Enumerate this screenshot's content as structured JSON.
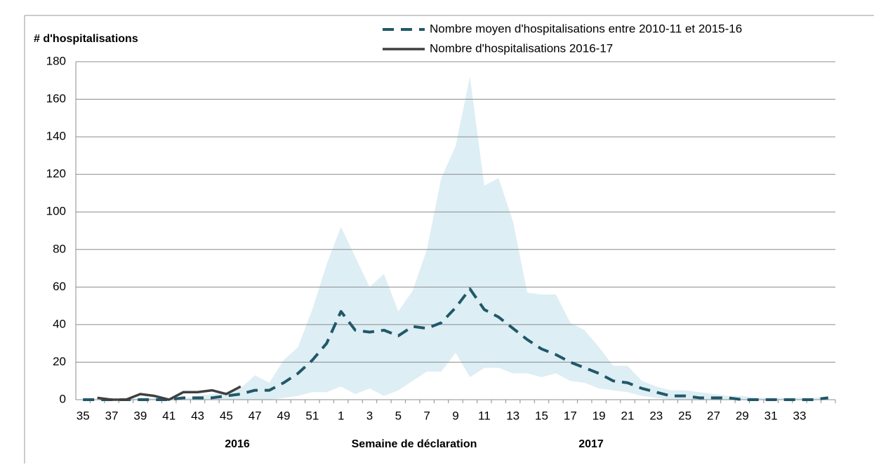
{
  "chart_data": {
    "type": "line",
    "y_label": "# d'hospitalisations",
    "x_label": "Semaine de déclaration",
    "annotations": [
      "2016",
      "2017"
    ],
    "categories": [
      "35",
      null,
      "37",
      null,
      "39",
      null,
      "41",
      null,
      "43",
      null,
      "45",
      null,
      "47",
      null,
      "49",
      null,
      "51",
      null,
      "1",
      null,
      "3",
      null,
      "5",
      null,
      "7",
      null,
      "9",
      null,
      "11",
      null,
      "13",
      null,
      "15",
      null,
      "17",
      null,
      "19",
      null,
      "21",
      null,
      "23",
      null,
      "25",
      null,
      "27",
      null,
      "29",
      null,
      "31",
      null,
      "33",
      null,
      null
    ],
    "series": [
      {
        "name": "Nombre moyen d'hospitalisations entre 2010-11 et 2015-16",
        "color": "#215868",
        "dashed": true,
        "values": [
          0,
          0,
          0,
          0,
          0,
          0,
          0,
          1,
          1,
          1,
          2,
          3,
          5,
          5,
          9,
          14,
          21,
          30,
          47,
          37,
          36,
          37,
          34,
          39,
          38,
          41,
          49,
          59,
          48,
          44,
          38,
          32,
          27,
          24,
          20,
          17,
          14,
          10,
          9,
          6,
          4,
          2,
          2,
          1,
          1,
          1,
          0,
          0,
          0,
          0,
          0,
          0,
          1
        ]
      },
      {
        "name": "Nombre d'hospitalisations 2016-17",
        "color": "#404040",
        "dashed": false,
        "values": [
          null,
          1,
          0,
          0,
          3,
          2,
          0,
          4,
          4,
          5,
          3,
          7,
          null,
          null,
          null,
          null,
          null,
          null,
          null,
          null,
          null,
          null,
          null,
          null,
          null,
          null,
          null,
          null,
          null,
          null,
          null,
          null,
          null,
          null,
          null,
          null,
          null,
          null,
          null,
          null,
          null,
          null,
          null,
          null,
          null,
          null,
          null,
          null,
          null,
          null,
          null,
          null,
          null
        ]
      }
    ],
    "band": {
      "color": "#ddeef5",
      "upper": [
        0,
        0,
        0,
        0,
        1,
        1,
        1,
        1,
        2,
        3,
        4,
        6,
        13,
        9,
        21,
        28,
        48,
        72,
        92,
        76,
        60,
        67,
        47,
        58,
        80,
        118,
        135,
        172,
        114,
        118,
        95,
        57,
        56,
        56,
        41,
        37,
        28,
        18,
        18,
        10,
        7,
        5,
        5,
        4,
        3,
        2,
        2,
        1,
        1,
        1,
        1,
        1,
        2
      ],
      "lower": [
        0,
        0,
        0,
        0,
        0,
        0,
        0,
        0,
        0,
        0,
        0,
        0,
        0,
        0,
        1,
        2,
        4,
        4,
        7,
        3,
        6,
        2,
        5,
        10,
        15,
        15,
        25,
        12,
        17,
        17,
        14,
        14,
        12,
        14,
        10,
        9,
        6,
        5,
        4,
        2,
        1,
        0,
        0,
        0,
        0,
        0,
        0,
        0,
        0,
        0,
        0,
        0,
        0
      ]
    },
    "ylim": [
      0,
      180
    ],
    "yticks": [
      0,
      20,
      40,
      60,
      80,
      100,
      120,
      140,
      160,
      180
    ],
    "grid": true
  }
}
